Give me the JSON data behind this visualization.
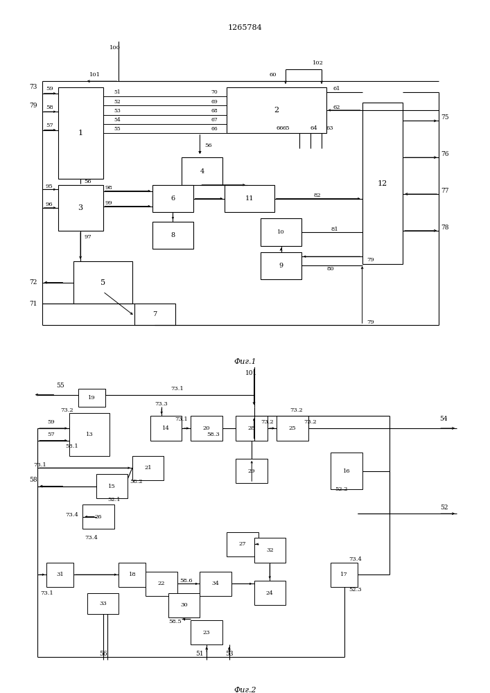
{
  "title": "1265784",
  "fig1_label": "Фиг.1",
  "fig2_label": "Фиг.2",
  "background_color": "#ffffff",
  "line_color": "#000000",
  "box_color": "#ffffff"
}
